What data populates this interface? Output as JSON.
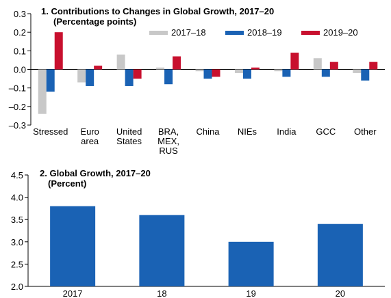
{
  "colors": {
    "2017-18": "#c8c8c8",
    "2018-19": "#1a62b4",
    "2019-20": "#c8102e",
    "bars": "#1a62b4",
    "axis": "#000000"
  },
  "chart_data": [
    {
      "type": "bar",
      "title": "1. Contributions to Changes in Global Growth, 2017–20",
      "subtitle": "(Percentage points)",
      "categories": [
        "Stressed",
        "Euro area",
        "United States",
        "BRA, MEX, RUS",
        "China",
        "NIEs",
        "India",
        "GCC",
        "Other"
      ],
      "category_lines": [
        [
          "Stressed"
        ],
        [
          "Euro",
          "area"
        ],
        [
          "United",
          "States"
        ],
        [
          "BRA,",
          "MEX,",
          "RUS"
        ],
        [
          "China"
        ],
        [
          "NIEs"
        ],
        [
          "India"
        ],
        [
          "GCC"
        ],
        [
          "Other"
        ]
      ],
      "series": [
        {
          "name": "2017–18",
          "color_key": "2017-18",
          "values": [
            -0.24,
            -0.07,
            0.08,
            0.01,
            -0.01,
            -0.02,
            -0.01,
            0.06,
            -0.02
          ]
        },
        {
          "name": "2018–19",
          "color_key": "2018-19",
          "values": [
            -0.12,
            -0.09,
            -0.09,
            -0.08,
            -0.05,
            -0.05,
            -0.04,
            -0.04,
            -0.06
          ]
        },
        {
          "name": "2019–20",
          "color_key": "2019-20",
          "values": [
            0.2,
            0.02,
            -0.05,
            0.07,
            -0.04,
            0.01,
            0.09,
            0.04,
            0.04
          ]
        }
      ],
      "ylim": [
        -0.3,
        0.3
      ],
      "yticks": [
        0.3,
        0.2,
        0.1,
        0.0,
        -0.1,
        -0.2,
        -0.3
      ],
      "ytick_labels": [
        "0.3",
        "0.2",
        "0.1",
        "0.0",
        "–0.1",
        "–0.2",
        "–0.3"
      ],
      "legend": "top-right",
      "grid": false
    },
    {
      "type": "bar",
      "title": "2. Global Growth, 2017–20",
      "subtitle": "(Percent)",
      "categories": [
        "2017",
        "18",
        "19",
        "20"
      ],
      "values": [
        3.8,
        3.6,
        3.0,
        3.4
      ],
      "ylim": [
        2.0,
        4.5
      ],
      "yticks": [
        4.5,
        4.0,
        3.5,
        3.0,
        2.5,
        2.0
      ],
      "ytick_labels": [
        "4.5",
        "4.0",
        "3.5",
        "3.0",
        "2.5",
        "2.0"
      ],
      "grid": false
    }
  ]
}
